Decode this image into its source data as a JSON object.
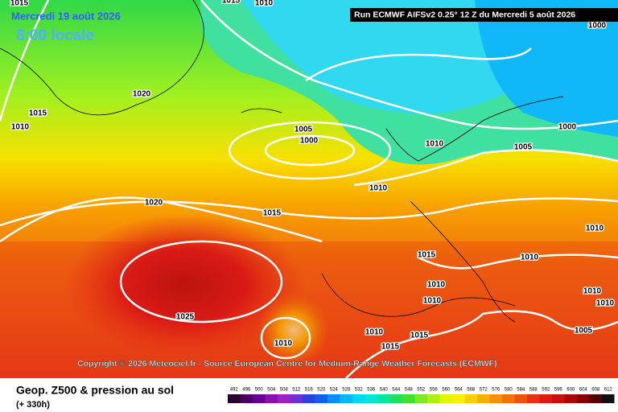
{
  "header": {
    "date": "Mercredi 19 août 2026",
    "time": "8:00 locale",
    "run": "Run ECMWF AIFSv2 0.25° 12 Z du Mercredi 5 août 2026"
  },
  "isobars": [
    "1015",
    "1010",
    "1015",
    "1000",
    "1020",
    "1015",
    "1010",
    "1005",
    "1000",
    "1010",
    "1000",
    "1005",
    "1010",
    "1020",
    "1015",
    "1010",
    "1015",
    "1010",
    "1010",
    "1010",
    "1010",
    "1010",
    "1025",
    "1005",
    "1010",
    "1015",
    "1010",
    "1015"
  ],
  "copyright": "Copyright © 2026 Meteociel.fr - Source European Centre for Medium-Range Weather Forecasts (ECMWF)",
  "footer": {
    "title": "Geop. Z500 & pression au sol",
    "lead": "(+ 330h)"
  },
  "legend": {
    "labels": [
      "492",
      "496",
      "500",
      "504",
      "508",
      "512",
      "516",
      "520",
      "524",
      "528",
      "532",
      "536",
      "540",
      "544",
      "548",
      "552",
      "556",
      "560",
      "564",
      "568",
      "572",
      "576",
      "580",
      "584",
      "588",
      "592",
      "596",
      "600",
      "604",
      "608",
      "612"
    ],
    "colors": [
      "#2a0030",
      "#4a0060",
      "#6a0090",
      "#8a10b0",
      "#a020c8",
      "#7030d8",
      "#3040e0",
      "#1060f0",
      "#0090f8",
      "#00b8f8",
      "#00d8f0",
      "#00e8d0",
      "#00e8a0",
      "#20e060",
      "#40e030",
      "#80e820",
      "#b0f010",
      "#e0f800",
      "#f8f000",
      "#f8d000",
      "#f8b000",
      "#f89000",
      "#f87000",
      "#f05010",
      "#e83018",
      "#e01818",
      "#c81010",
      "#a80808",
      "#880000",
      "#500000",
      "#101010"
    ]
  }
}
